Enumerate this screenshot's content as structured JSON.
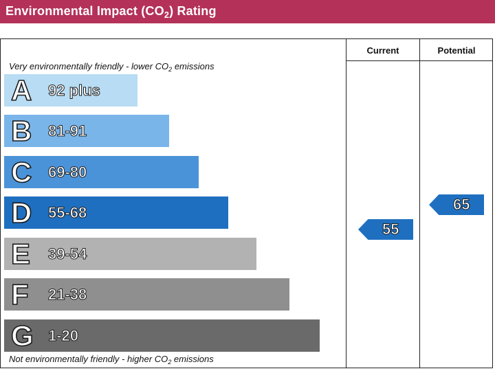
{
  "header": {
    "title_pre": "Environmental Impact (CO",
    "title_sub": "2",
    "title_post": ") Rating",
    "background_color": "#b4315a"
  },
  "columns": {
    "current": "Current",
    "potential": "Potential"
  },
  "notes": {
    "top_pre": "Very environmentally friendly - lower CO",
    "top_sub": "2",
    "top_post": " emissions",
    "bottom_pre": "Not environmentally friendly - higher CO",
    "bottom_sub": "2",
    "bottom_post": " emissions"
  },
  "bands": [
    {
      "letter": "A",
      "range": "92 plus",
      "color": "#b7dcf3"
    },
    {
      "letter": "B",
      "range": "81-91",
      "color": "#7ab5ea"
    },
    {
      "letter": "C",
      "range": "69-80",
      "color": "#4b93d9"
    },
    {
      "letter": "D",
      "range": "55-68",
      "color": "#1f6fc0"
    },
    {
      "letter": "E",
      "range": "39-54",
      "color": "#b2b2b2"
    },
    {
      "letter": "F",
      "range": "21-38",
      "color": "#8f8f8f"
    },
    {
      "letter": "G",
      "range": "1-20",
      "color": "#6a6a6a"
    }
  ],
  "ratings": {
    "current": {
      "value": "55",
      "color": "#1f6fc0"
    },
    "potential": {
      "value": "65",
      "color": "#1f6fc0"
    }
  }
}
